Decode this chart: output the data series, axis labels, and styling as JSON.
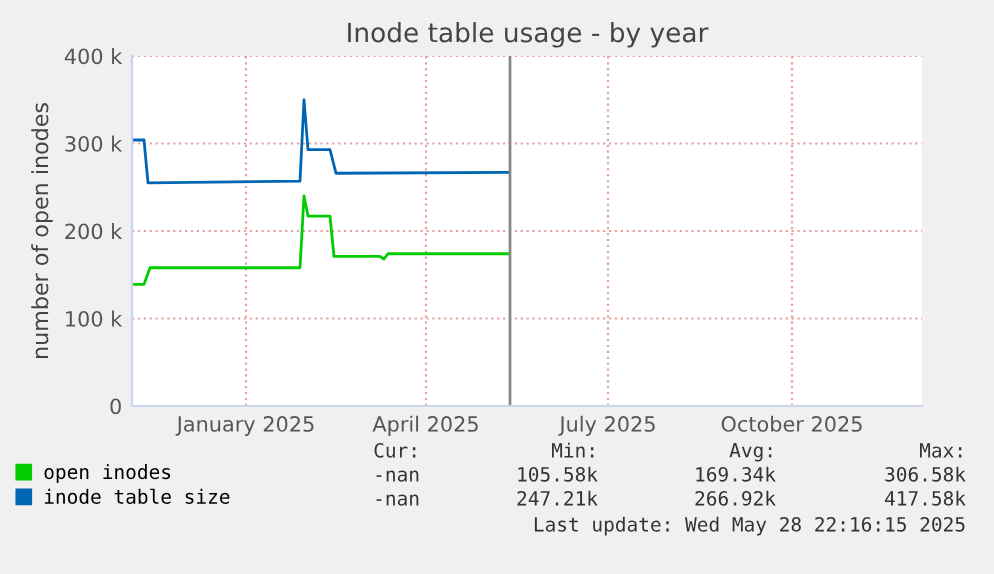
{
  "chart_data": {
    "type": "line",
    "title": "Inode table usage - by year",
    "ylabel": "number of open inodes",
    "xlim": [
      "2024-11-20",
      "2025-12-20"
    ],
    "xticks": [
      {
        "value": "2025-01-16",
        "label": "January 2025"
      },
      {
        "value": "2025-04-16",
        "label": "April 2025"
      },
      {
        "value": "2025-07-16",
        "label": "July 2025"
      },
      {
        "value": "2025-10-16",
        "label": "October 2025"
      }
    ],
    "ylim": [
      0,
      400000
    ],
    "yticks": [
      0,
      {
        "value": 100000,
        "label": "100 k"
      },
      {
        "value": 200000,
        "label": "200 k"
      },
      {
        "value": 300000,
        "label": "300 k"
      },
      {
        "value": 400000,
        "label": "400 k"
      }
    ],
    "grid": true,
    "legend": "bottom",
    "marker": "none",
    "line_style": "solid",
    "series": [
      {
        "name": "open inodes",
        "color": "#00cc00",
        "x": [
          "2024-11-21",
          "2024-11-26",
          "2024-11-29",
          "2025-02-12",
          "2025-02-14",
          "2025-02-16",
          "2025-02-27",
          "2025-03-01",
          "2025-03-24",
          "2025-03-26",
          "2025-03-28",
          "2025-05-27"
        ],
        "values": [
          139000,
          139000,
          158000,
          158000,
          240000,
          217000,
          217000,
          171000,
          171000,
          168000,
          174000,
          174000
        ]
      },
      {
        "name": "inode table size",
        "color": "#0066b3",
        "x": [
          "2024-11-21",
          "2024-11-26",
          "2024-11-28",
          "2025-02-12",
          "2025-02-14",
          "2025-02-16",
          "2025-02-27",
          "2025-03-02",
          "2025-05-27"
        ],
        "values": [
          304000,
          304000,
          255000,
          257000,
          350000,
          293000,
          293000,
          266000,
          267000
        ]
      }
    ],
    "ref_lines": [
      {
        "axis": "x",
        "value": "2025-05-28",
        "color": "#888888"
      }
    ],
    "annotations": [
      "Cur:",
      "Min:",
      "Avg:",
      "Max:",
      "-nan",
      "105.58k",
      "169.34k",
      "306.58k",
      "-nan",
      "247.21k",
      "266.92k",
      "417.58k",
      "Last update: Wed May 28 22:16:15 2025"
    ]
  }
}
